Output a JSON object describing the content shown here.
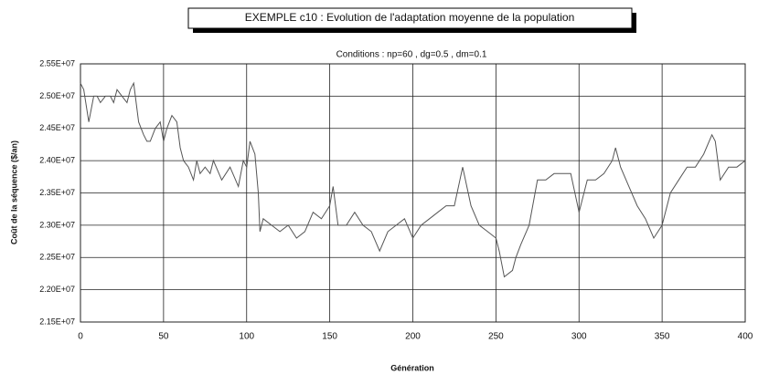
{
  "chart_data": {
    "type": "line",
    "title": "EXEMPLE c10 : Evolution de l'adaptation moyenne de la population",
    "subtitle": "Conditions : np=60 , dg=0.5 , dm=0.1",
    "xlabel": "Génération",
    "ylabel": "Coût de la séquence ($/an)",
    "x": [
      0,
      2,
      5,
      8,
      10,
      12,
      15,
      18,
      20,
      22,
      25,
      28,
      30,
      32,
      35,
      38,
      40,
      42,
      45,
      48,
      50,
      52,
      55,
      58,
      60,
      62,
      65,
      68,
      70,
      72,
      75,
      78,
      80,
      85,
      90,
      95,
      98,
      100,
      102,
      105,
      107,
      108,
      110,
      115,
      120,
      125,
      130,
      135,
      140,
      145,
      150,
      152,
      155,
      160,
      165,
      170,
      175,
      180,
      185,
      190,
      195,
      200,
      205,
      210,
      215,
      220,
      225,
      230,
      235,
      240,
      245,
      250,
      252,
      255,
      260,
      262,
      265,
      270,
      275,
      280,
      285,
      290,
      295,
      300,
      305,
      310,
      315,
      320,
      322,
      325,
      330,
      335,
      340,
      345,
      350,
      355,
      360,
      365,
      370,
      375,
      380,
      382,
      385,
      390,
      395,
      400
    ],
    "series": [
      {
        "name": "Coût",
        "color": "#555555",
        "values": [
          25200000,
          25100000,
          24600000,
          25000000,
          25000000,
          24900000,
          25000000,
          25000000,
          24900000,
          25100000,
          25000000,
          24900000,
          25100000,
          25200000,
          24600000,
          24400000,
          24300000,
          24300000,
          24500000,
          24600000,
          24300000,
          24500000,
          24700000,
          24600000,
          24200000,
          24000000,
          23900000,
          23700000,
          24000000,
          23800000,
          23900000,
          23800000,
          24000000,
          23700000,
          23900000,
          23600000,
          24000000,
          23900000,
          24300000,
          24100000,
          23500000,
          22900000,
          23100000,
          23000000,
          22900000,
          23000000,
          22800000,
          22900000,
          23200000,
          23100000,
          23300000,
          23600000,
          23000000,
          23000000,
          23200000,
          23000000,
          22900000,
          22600000,
          22900000,
          23000000,
          23100000,
          22800000,
          23000000,
          23100000,
          23200000,
          23300000,
          23300000,
          23900000,
          23300000,
          23000000,
          22900000,
          22800000,
          22600000,
          22200000,
          22300000,
          22500000,
          22700000,
          23000000,
          23700000,
          23700000,
          23800000,
          23800000,
          23800000,
          23200000,
          23700000,
          23700000,
          23800000,
          24000000,
          24200000,
          23900000,
          23600000,
          23300000,
          23100000,
          22800000,
          23000000,
          23500000,
          23700000,
          23900000,
          23900000,
          24100000,
          24400000,
          24300000,
          23700000,
          23900000,
          23900000,
          24000000
        ]
      }
    ],
    "xlim": [
      0,
      400
    ],
    "xticks": [
      0,
      50,
      100,
      150,
      200,
      250,
      300,
      350,
      400
    ],
    "ylim": [
      21500000,
      25500000
    ],
    "yticks": [
      {
        "value": 21500000,
        "label": "2.15E+07"
      },
      {
        "value": 22000000,
        "label": "2.20E+07"
      },
      {
        "value": 22500000,
        "label": "2.25E+07"
      },
      {
        "value": 23000000,
        "label": "2.30E+07"
      },
      {
        "value": 23500000,
        "label": "2.35E+07"
      },
      {
        "value": 24000000,
        "label": "2.40E+07"
      },
      {
        "value": 24500000,
        "label": "2.45E+07"
      },
      {
        "value": 25000000,
        "label": "2.50E+07"
      },
      {
        "value": 25500000,
        "label": "2.55E+07"
      }
    ],
    "grid": true
  }
}
